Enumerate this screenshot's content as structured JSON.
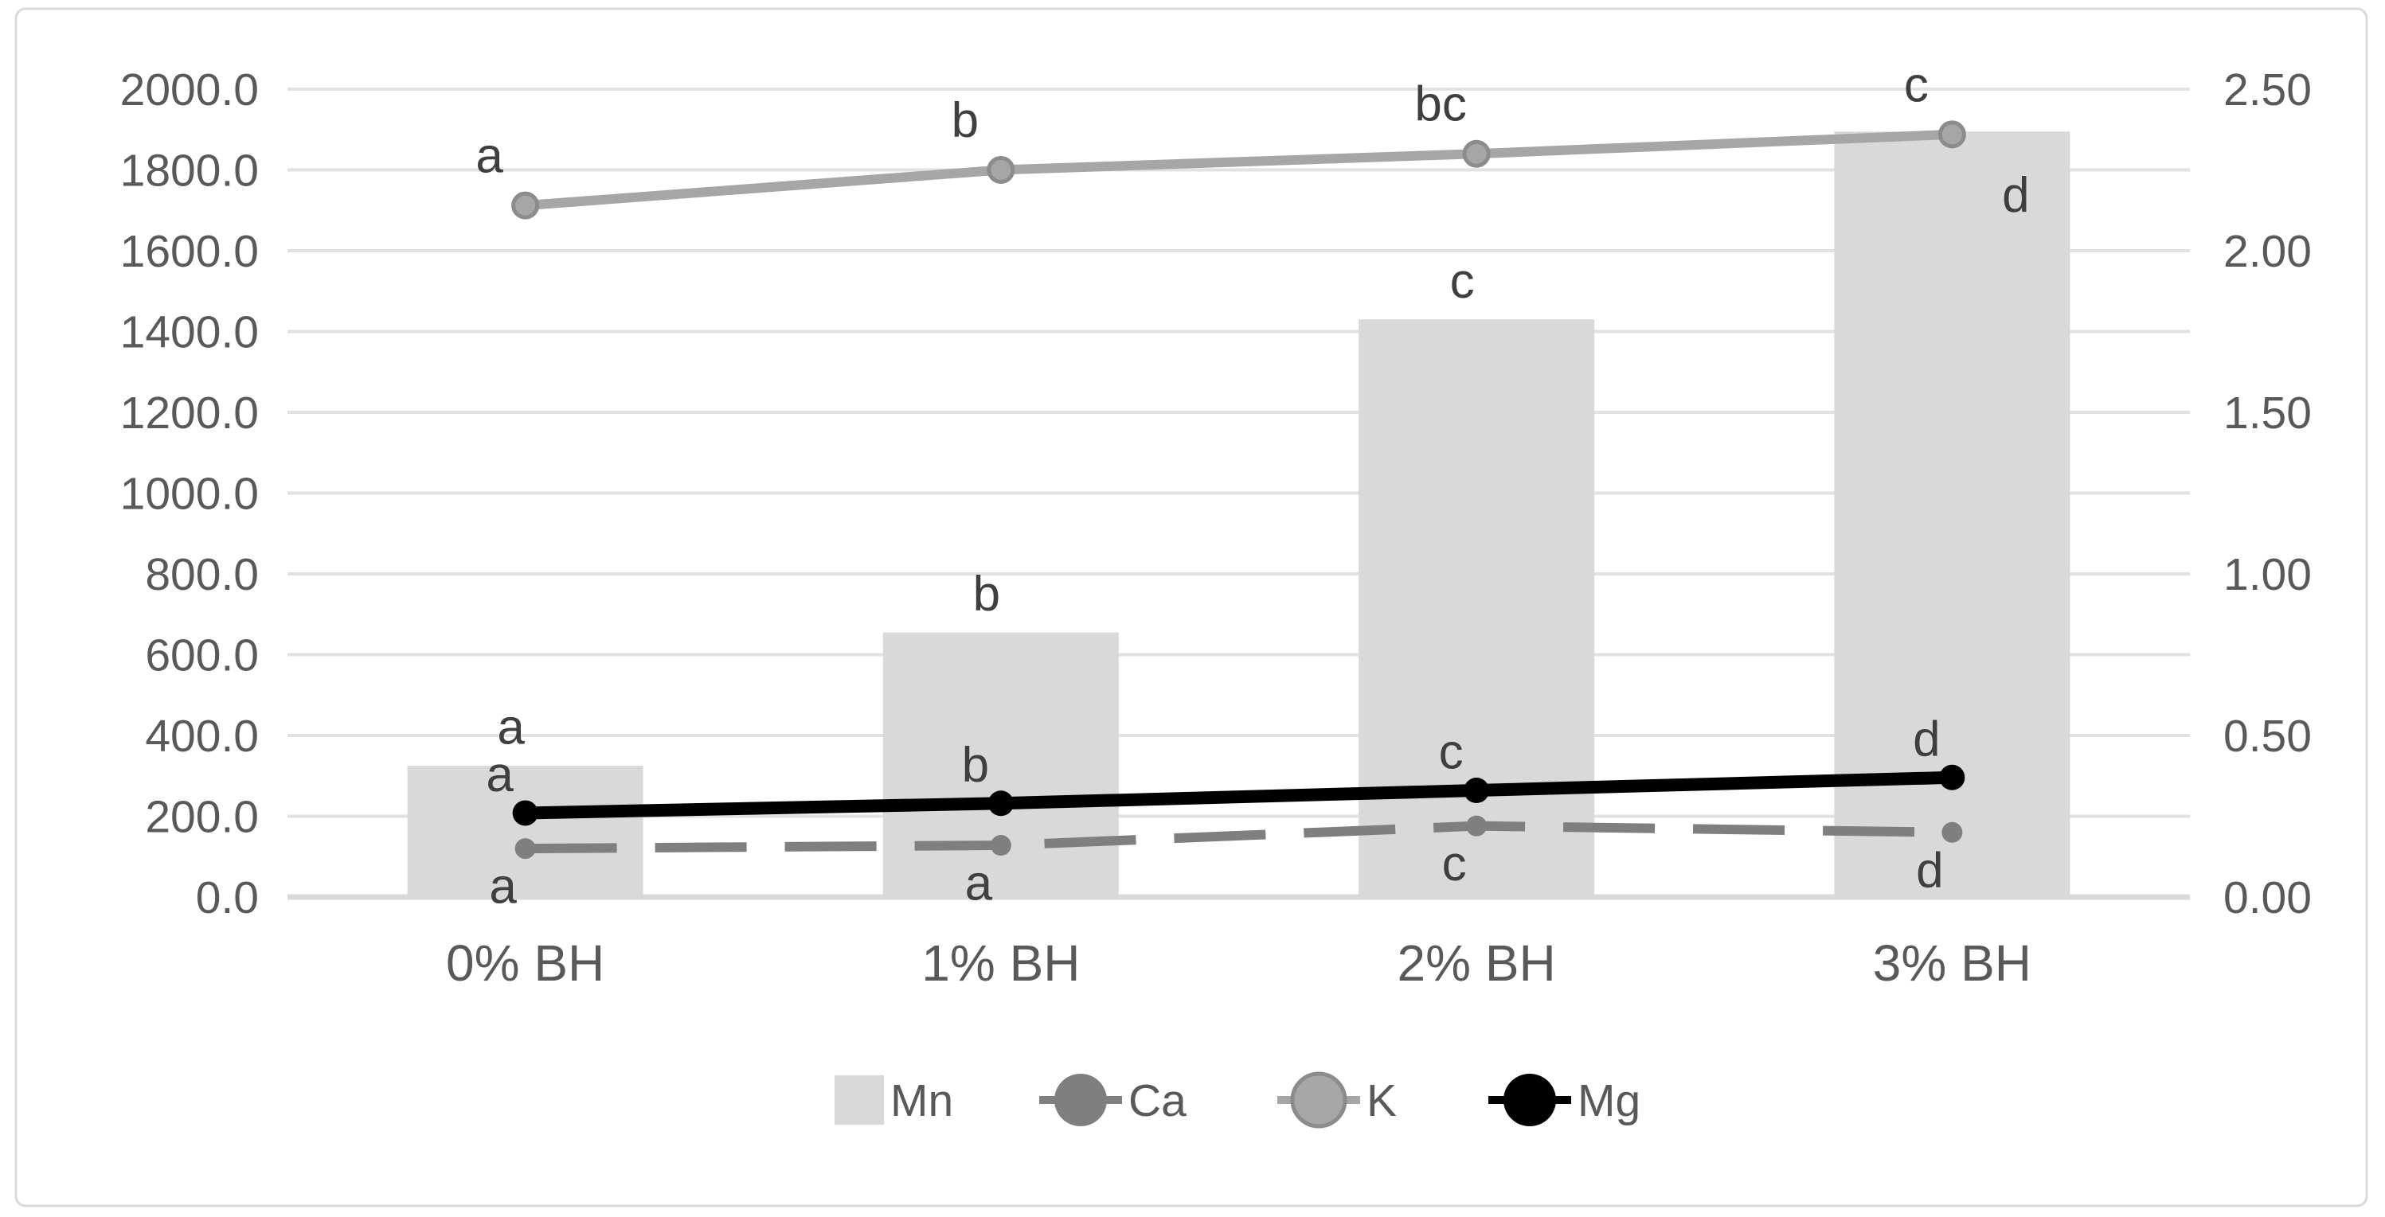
{
  "chart_data": {
    "type": "combo-bar-line",
    "title": "",
    "categories": [
      "0% BH",
      "1% BH",
      "2% BH",
      "3% BH"
    ],
    "left_axis": {
      "min": 0,
      "max": 2000,
      "step": 200,
      "tick_labels": [
        "0.0",
        "200.0",
        "400.0",
        "600.0",
        "800.0",
        "1000.0",
        "1200.0",
        "1400.0",
        "1600.0",
        "1800.0",
        "2000.0"
      ]
    },
    "right_axis": {
      "min": 0,
      "max": 2.5,
      "step": 0.5,
      "tick_labels": [
        "0.00",
        "0.50",
        "1.00",
        "1.50",
        "2.00",
        "2.50"
      ]
    },
    "series": [
      {
        "name": "Mn",
        "type": "bar",
        "axis": "left",
        "color": "#d9d9d9",
        "values": [
          325,
          655,
          1430,
          1895
        ],
        "point_labels": [
          "a",
          "b",
          "c",
          "d"
        ]
      },
      {
        "name": "Ca",
        "type": "line",
        "axis": "right",
        "color": "#7f7f7f",
        "dashed": true,
        "values": [
          0.15,
          0.16,
          0.22,
          0.2
        ],
        "point_labels": [
          "a",
          "a",
          "c",
          "d"
        ]
      },
      {
        "name": "K",
        "type": "line",
        "axis": "right",
        "color": "#a6a6a6",
        "marker_stroke": "#8c8c8c",
        "dashed": false,
        "values": [
          2.14,
          2.25,
          2.3,
          2.36
        ],
        "point_labels": [
          "a",
          "b",
          "bc",
          "c"
        ]
      },
      {
        "name": "Mg",
        "type": "line",
        "axis": "right",
        "color": "#000000",
        "dashed": false,
        "values": [
          0.26,
          0.29,
          0.33,
          0.37
        ],
        "point_labels": [
          "a",
          "b",
          "c",
          "d"
        ]
      }
    ],
    "legend": {
      "position": "bottom-center",
      "items": [
        "Mn",
        "Ca",
        "K",
        "Mg"
      ]
    },
    "grid": true,
    "colors": {
      "gridline": "#e2e2e2",
      "axis_line": "#d9d9d9",
      "axis_text": "#595959",
      "letter_text": "#3f3f3f",
      "chart_border": "#d9d9d9",
      "background": "#ffffff"
    }
  }
}
